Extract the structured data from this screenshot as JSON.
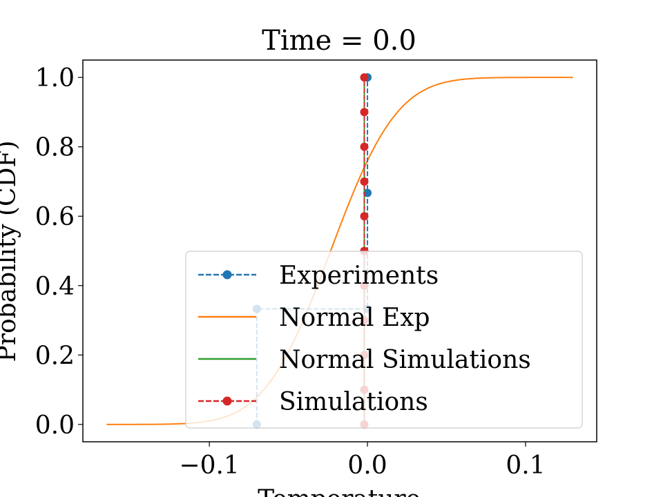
{
  "chart_data": {
    "type": "line",
    "title": "Time = 0.0",
    "xlabel": "Temperature",
    "ylabel": "Probability (CDF)",
    "xlim": [
      -0.18,
      0.145
    ],
    "ylim": [
      -0.05,
      1.05
    ],
    "xticks": [
      -0.1,
      0.0,
      0.1
    ],
    "xtick_labels": [
      "−0.1",
      "0.0",
      "0.1"
    ],
    "yticks": [
      0.0,
      0.2,
      0.4,
      0.6,
      0.8,
      1.0
    ],
    "ytick_labels": [
      "0.0",
      "0.2",
      "0.4",
      "0.6",
      "0.8",
      "1.0"
    ],
    "grid": false,
    "legend_position": "lower-right",
    "series": [
      {
        "name": "Experiments",
        "style": "dashed-markers",
        "color": "#1f77b4",
        "x": [
          -0.07,
          -0.07,
          0.0,
          0.0,
          0.0
        ],
        "y": [
          0.0,
          0.333,
          0.333,
          0.667,
          1.0
        ]
      },
      {
        "name": "Normal Exp",
        "style": "solid",
        "color": "#ff7f0e",
        "mean": -0.0233,
        "std": 0.033,
        "x_range": [
          -0.165,
          0.13
        ]
      },
      {
        "name": "Normal Simulations",
        "style": "solid",
        "color": "#2ca02c",
        "x": [
          -0.002,
          -0.002
        ],
        "y": [
          0.0,
          1.0
        ]
      },
      {
        "name": "Simulations",
        "style": "dashed-markers",
        "color": "#d62728",
        "x": [
          -0.002,
          -0.002,
          -0.002,
          -0.002,
          -0.002,
          -0.002,
          -0.002,
          -0.002,
          -0.002,
          -0.002,
          -0.002
        ],
        "y": [
          0.0,
          0.1,
          0.2,
          0.3,
          0.4,
          0.5,
          0.6,
          0.7,
          0.8,
          0.9,
          1.0
        ]
      }
    ]
  }
}
